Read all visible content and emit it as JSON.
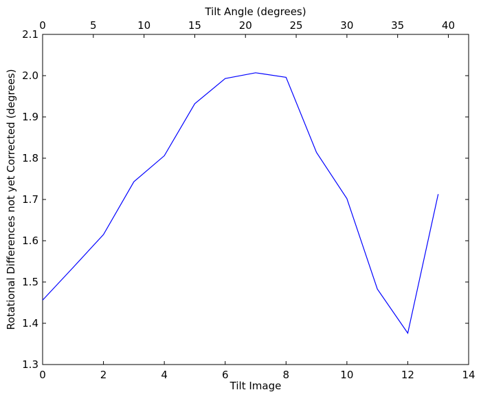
{
  "chart_data": {
    "type": "line",
    "xlabel": "Tilt Image",
    "ylabel": "Rotational Differences not yet Corrected (degrees)",
    "top_xlabel": "Tilt Angle (degrees)",
    "xlim": [
      0,
      14
    ],
    "ylim": [
      1.3,
      2.1
    ],
    "top_xlim": [
      0,
      42
    ],
    "x_ticks": [
      "0",
      "2",
      "4",
      "6",
      "8",
      "10",
      "12",
      "14"
    ],
    "y_ticks": [
      "1.3",
      "1.4",
      "1.5",
      "1.6",
      "1.7",
      "1.8",
      "1.9",
      "2.0",
      "2.1"
    ],
    "top_x_ticks": [
      "0",
      "5",
      "10",
      "15",
      "20",
      "25",
      "30",
      "35",
      "40"
    ],
    "grid": false,
    "series": [
      {
        "color": "#0000ff",
        "x": [
          0,
          1,
          2,
          3,
          4,
          5,
          6,
          7,
          8,
          9,
          10,
          11,
          12,
          13
        ],
        "y": [
          1.456,
          1.535,
          1.615,
          1.743,
          1.806,
          1.932,
          1.993,
          2.007,
          1.996,
          1.814,
          1.702,
          1.483,
          1.376,
          1.713
        ]
      }
    ]
  }
}
